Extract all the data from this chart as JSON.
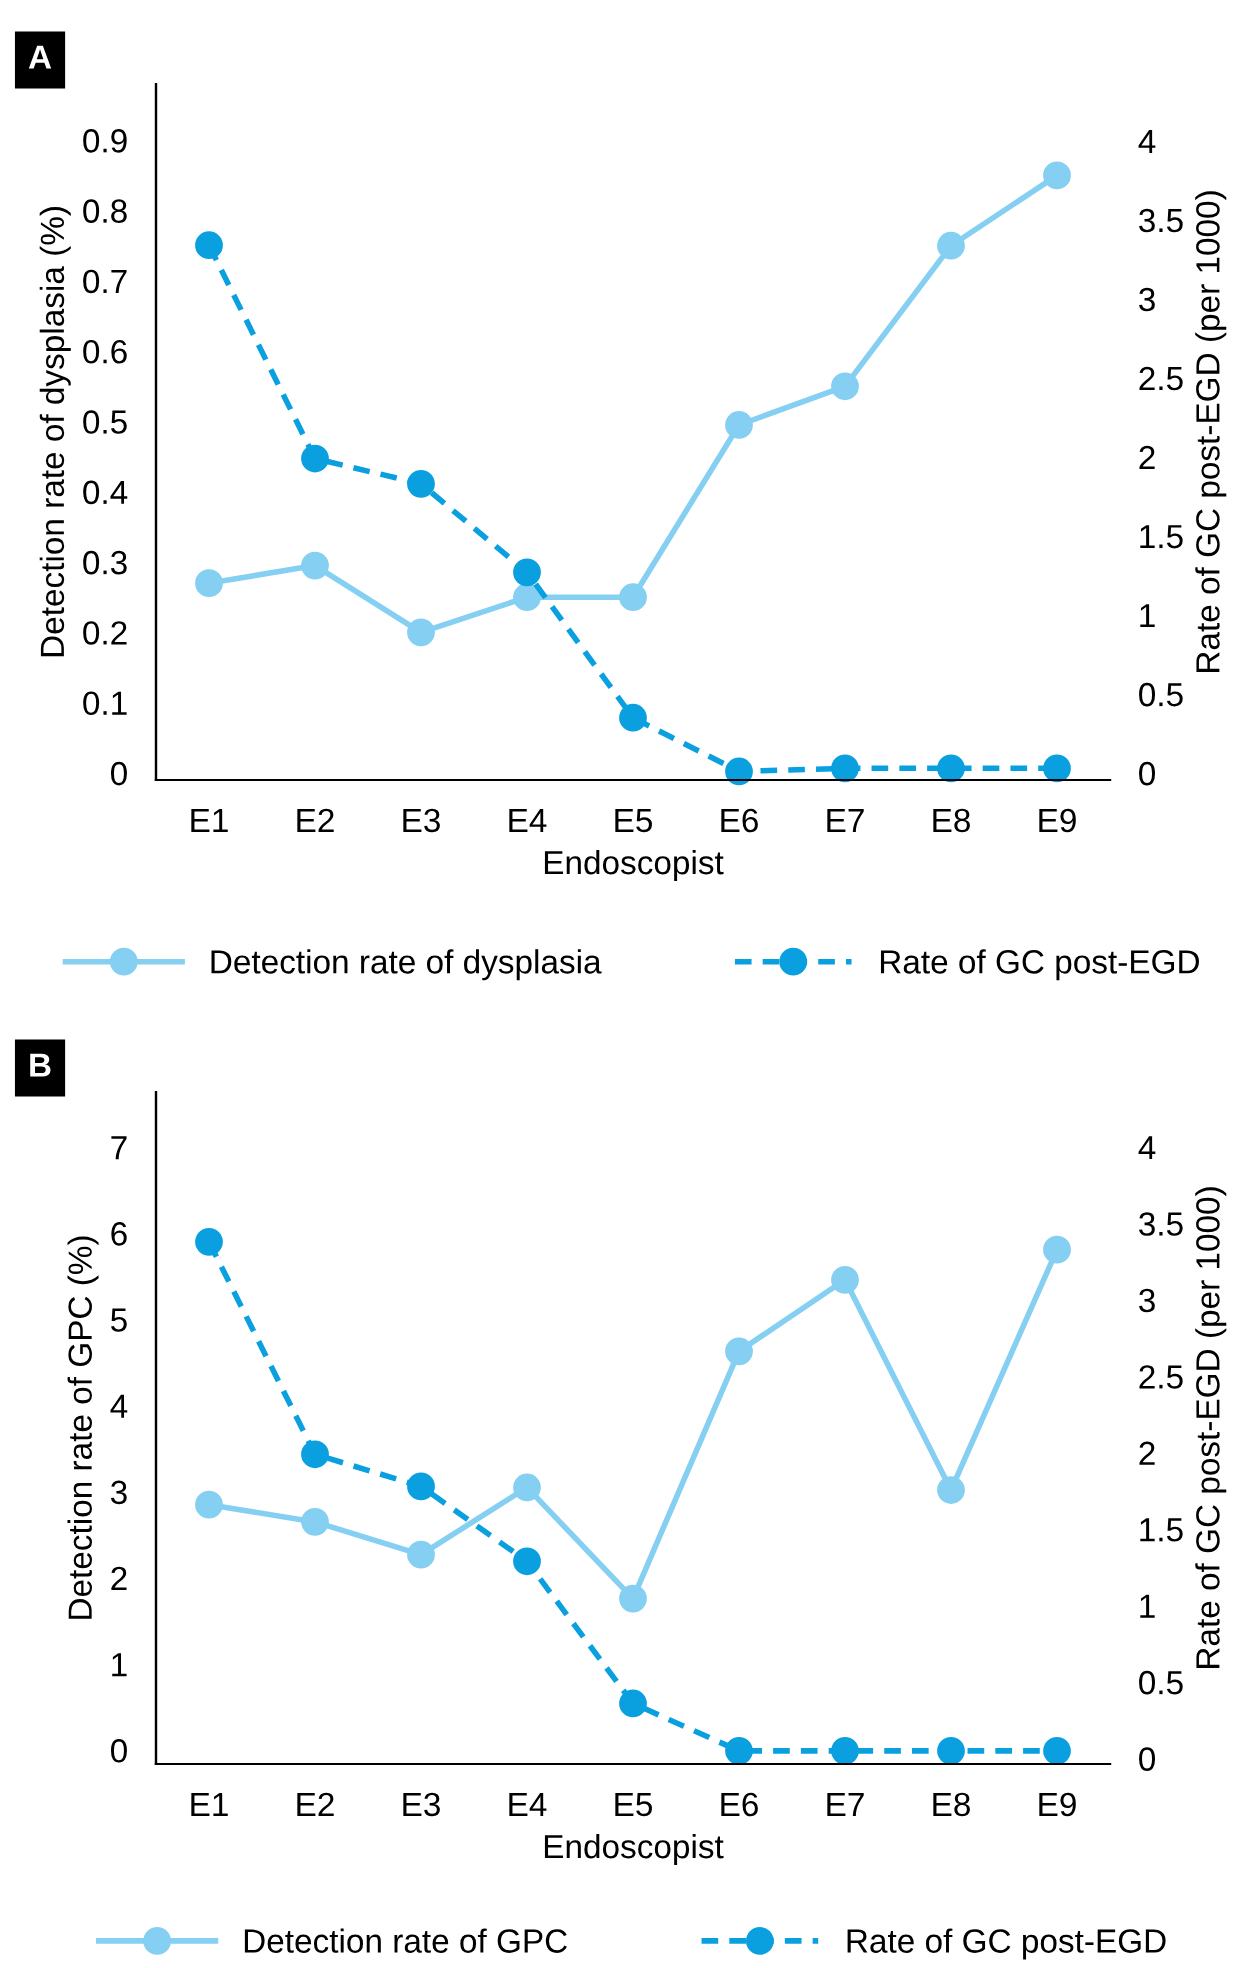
{
  "chart_data": [
    {
      "type": "line",
      "title": "A",
      "xlabel": "Endoscopist",
      "ylabel": "Detection rate of dysplasia (%)",
      "y2label": "Rate of GC post-EGD (per 1000)",
      "categories": [
        "E1",
        "E2",
        "E3",
        "E4",
        "E5",
        "E6",
        "E7",
        "E8",
        "E9"
      ],
      "series": [
        {
          "name": "Detection rate of dysplasia",
          "color": "#84cff2",
          "line_style": "solid",
          "values": [
            0.27,
            0.295,
            0.2,
            0.25,
            0.25,
            0.495,
            0.55,
            0.75,
            0.85
          ]
        },
        {
          "name": "Rate of GC post-EGD",
          "color": "#0aa0e0",
          "line_style": "dashed",
          "axis": "y2",
          "values": [
            3.34,
            1.99,
            1.83,
            1.27,
            0.35,
            0.01,
            0.03,
            0.03,
            0.03
          ]
        }
      ],
      "ylim": [
        -0.01,
        0.98
      ],
      "yticks": [
        0,
        0.1,
        0.2,
        0.3,
        0.4,
        0.5,
        0.6,
        0.7,
        0.8,
        0.9
      ],
      "y2lim": [
        -0.044,
        4.36
      ],
      "y2ticks": [
        0,
        0.5,
        1,
        1.5,
        2,
        2.5,
        3,
        3.5,
        4
      ],
      "marker": "circle",
      "grid": false,
      "legend": "bottom"
    },
    {
      "type": "line",
      "title": "B",
      "xlabel": "Endoscopist",
      "ylabel": "Detection rate of GPC (%)",
      "y2label": "Rate of GC post-EGD (per 1000)",
      "categories": [
        "E1",
        "E2",
        "E3",
        "E4",
        "E5",
        "E6",
        "E7",
        "E8",
        "E9"
      ],
      "series": [
        {
          "name": "Detection rate of GPC",
          "color": "#84cff2",
          "line_style": "solid",
          "values": [
            2.85,
            2.65,
            2.27,
            3.05,
            1.76,
            4.63,
            5.46,
            3.02,
            5.81
          ]
        },
        {
          "name": "Rate of GC post-EGD",
          "color": "#0aa0e0",
          "line_style": "dashed",
          "axis": "y2",
          "values": [
            3.38,
            1.99,
            1.78,
            1.29,
            0.36,
            0.05,
            0.05,
            0.05,
            0.05
          ]
        }
      ],
      "ylim": [
        -0.16,
        7.64
      ],
      "yticks": [
        0,
        1,
        2,
        3,
        4,
        5,
        6,
        7
      ],
      "y2lim": [
        -0.036,
        4.36
      ],
      "y2ticks": [
        0,
        0.5,
        1,
        1.5,
        2,
        2.5,
        3,
        3.5,
        4
      ],
      "marker": "circle",
      "grid": false,
      "legend": "bottom"
    }
  ]
}
